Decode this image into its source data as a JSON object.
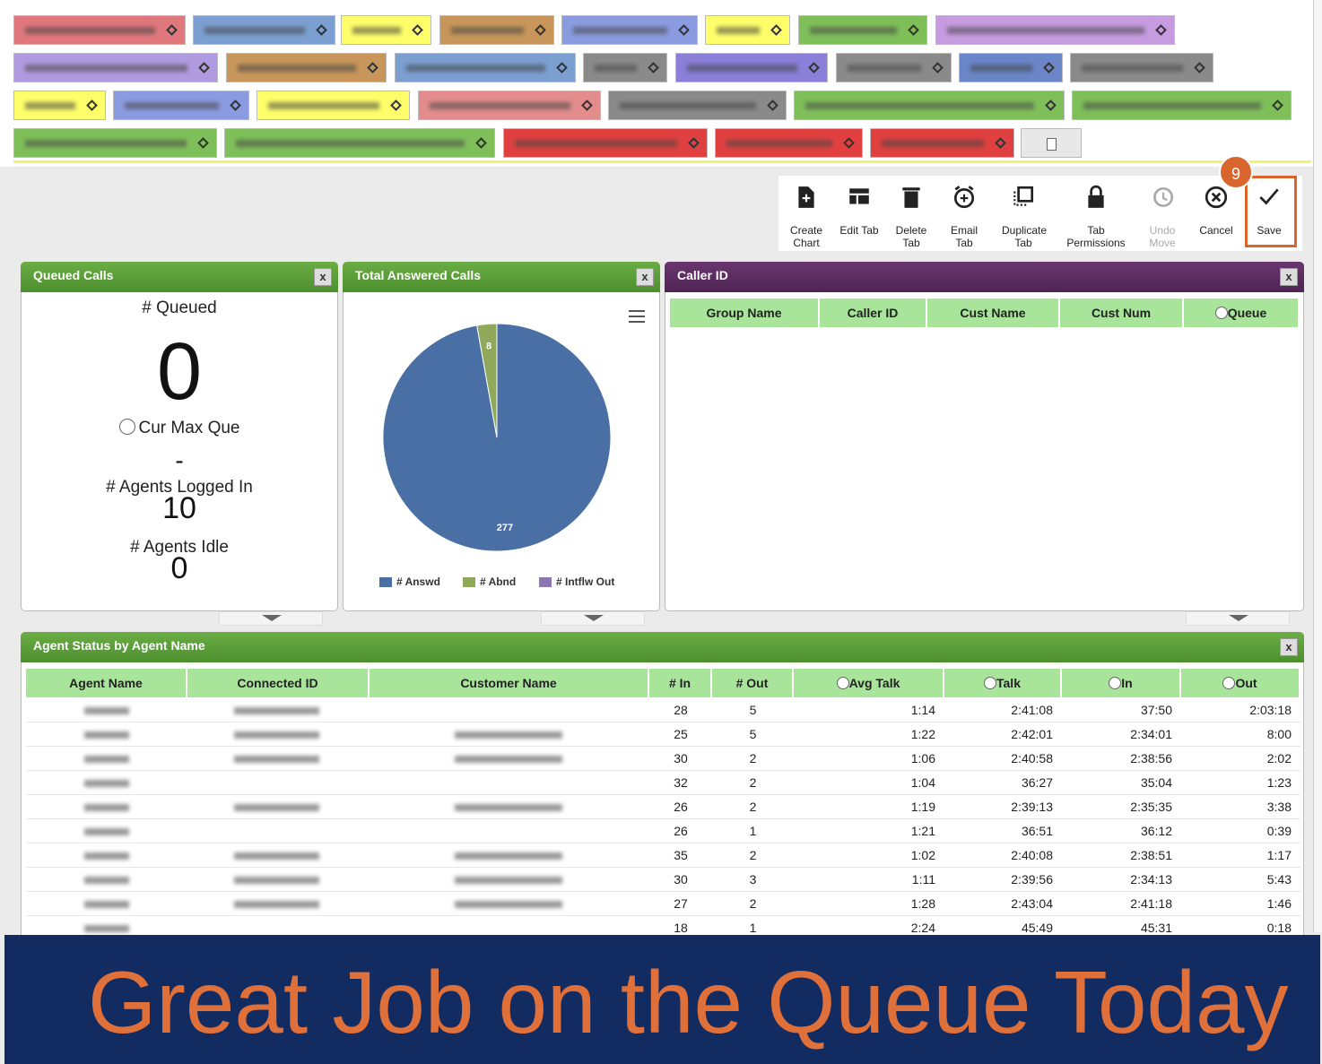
{
  "toolbar": {
    "step_badge": "9",
    "buttons": [
      "Create Chart",
      "Edit Tab",
      "Delete Tab",
      "Email Tab",
      "Duplicate Tab",
      "Tab Permissions",
      "Undo Move",
      "Cancel",
      "Save"
    ]
  },
  "close_label": "x",
  "queued_calls": {
    "title": "Queued Calls",
    "stats": [
      {
        "label": "# Queued",
        "value": 0
      },
      {
        "label": "Cur Max Que",
        "value": "-"
      },
      {
        "label": "# Agents Logged In",
        "value": 10
      },
      {
        "label": "# Agents Idle",
        "value": 0
      }
    ]
  },
  "chart_data": {
    "type": "pie",
    "title": "Total Answered Calls",
    "categories": [
      "# Answd",
      "# Abnd",
      "# Intflw Out"
    ],
    "values": [
      277,
      8,
      0
    ],
    "colors": [
      "#4a6fa5",
      "#8fa85a",
      "#8a77b0"
    ],
    "legend": "bottom"
  },
  "caller_id": {
    "title": "Caller ID",
    "columns": [
      "Group Name",
      "Caller ID",
      "Cust Name",
      "Cust Num",
      "Queue"
    ]
  },
  "agent_status": {
    "title": "Agent Status by Agent Name",
    "columns": [
      "Agent Name",
      "Connected ID",
      "Customer Name",
      "# In",
      "# Out",
      "Avg Talk",
      "Talk",
      "In",
      "Out"
    ],
    "rows": [
      [
        28,
        5,
        "1:14",
        "2:41:08",
        "37:50",
        "2:03:18"
      ],
      [
        25,
        5,
        "1:22",
        "2:42:01",
        "2:34:01",
        "8:00"
      ],
      [
        30,
        2,
        "1:06",
        "2:40:58",
        "2:38:56",
        "2:02"
      ],
      [
        32,
        2,
        "1:04",
        "36:27",
        "35:04",
        "1:23"
      ],
      [
        26,
        2,
        "1:19",
        "2:39:13",
        "2:35:35",
        "3:38"
      ],
      [
        26,
        1,
        "1:21",
        "36:51",
        "36:12",
        "0:39"
      ],
      [
        35,
        2,
        "1:02",
        "2:40:08",
        "2:38:51",
        "1:17"
      ],
      [
        30,
        3,
        "1:11",
        "2:39:56",
        "2:34:13",
        "5:43"
      ],
      [
        27,
        2,
        "1:28",
        "2:43:04",
        "2:41:18",
        "1:46"
      ],
      [
        18,
        1,
        "2:24",
        "45:49",
        "45:31",
        "0:18"
      ]
    ]
  },
  "banner": "Great Job on the Queue Today"
}
